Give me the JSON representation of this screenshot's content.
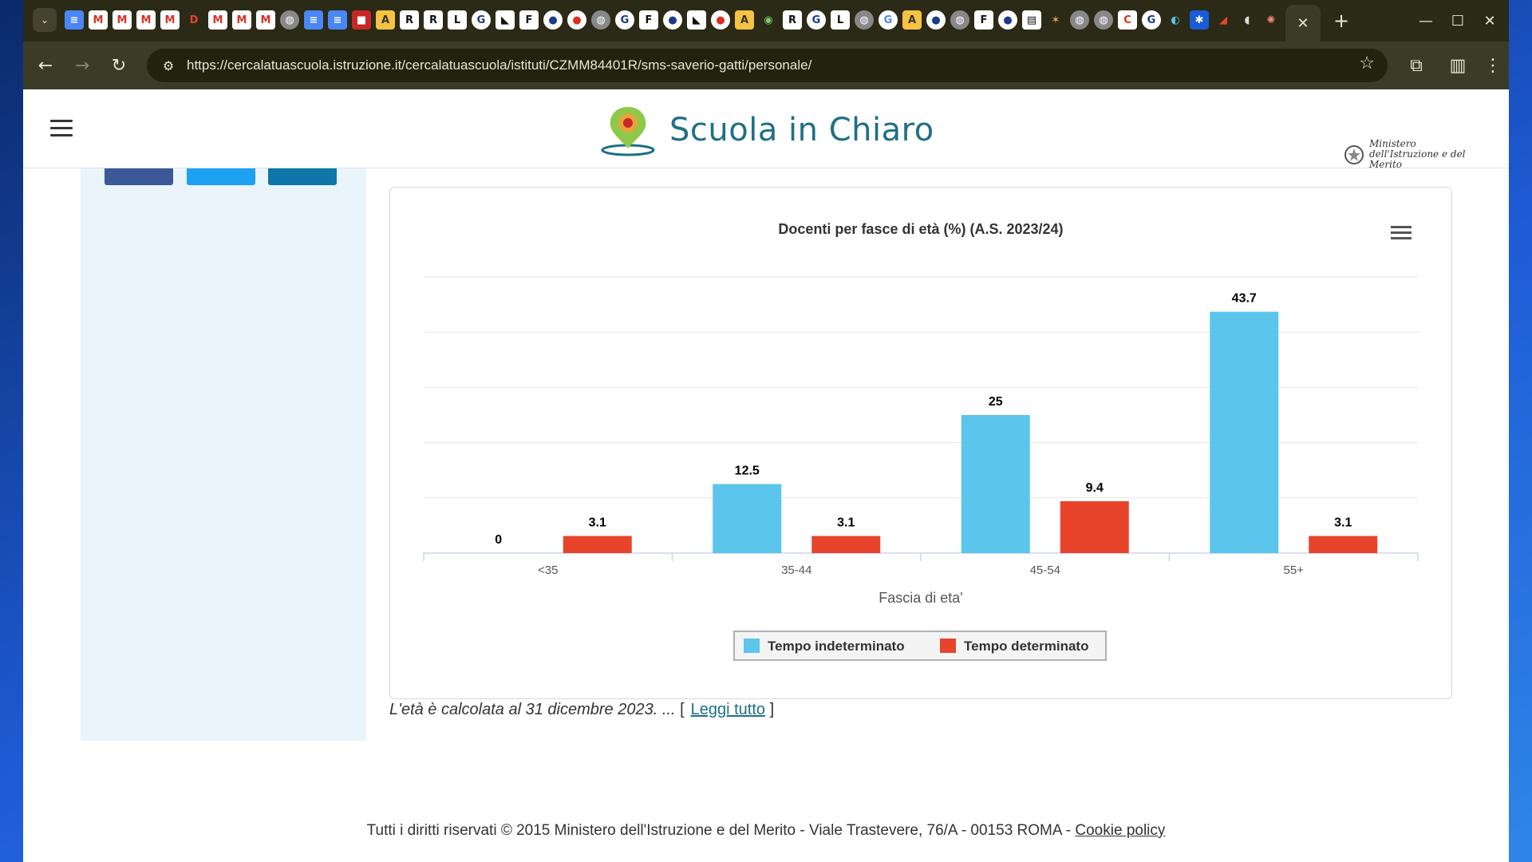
{
  "browser": {
    "url": "https://cercalatuascuola.istruzione.it/cercalatuascuola/istituti/CZMM84401R/sms-saverio-gatti/personale/"
  },
  "site": {
    "logo_text": "Scuola in Chiaro",
    "ministry_text": "Ministero dell'Istruzione e del Merito"
  },
  "chart_data": {
    "type": "bar",
    "title": "Docenti per fasce di età (%) (A.S. 2023/24)",
    "xlabel": "Fascia di eta'",
    "ylabel": "",
    "categories": [
      "<35",
      "35-44",
      "45-54",
      "55+"
    ],
    "series": [
      {
        "name": "Tempo indeterminato",
        "color": "#5bc5ec",
        "values": [
          0,
          12.5,
          25,
          43.7
        ]
      },
      {
        "name": "Tempo determinato",
        "color": "#e8442b",
        "values": [
          3.1,
          3.1,
          9.4,
          3.1
        ]
      }
    ],
    "ylim": [
      0,
      50
    ],
    "grid": true,
    "legend": "bottom-center"
  },
  "footnote": {
    "text": "L'età è calcolata al 31 dicembre 2023. ...",
    "open_bracket": "[",
    "link": "Leggi tutto",
    "close_bracket": "]"
  },
  "footer": {
    "text": "Tutti i diritti riservati © 2015 Ministero dell'Istruzione e del Merito - Viale Trastevere, 76/A - 00153 ROMA -",
    "cookie_link": "Cookie policy"
  }
}
